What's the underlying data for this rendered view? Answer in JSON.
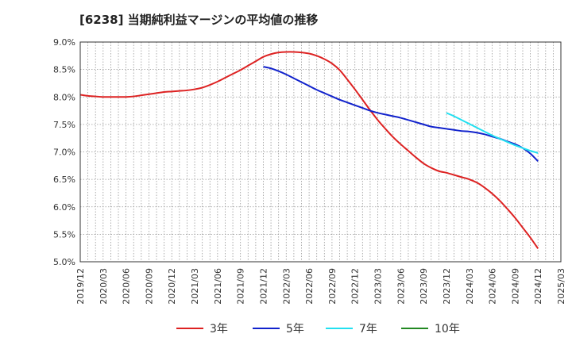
{
  "chart_data": {
    "type": "line",
    "title": "[6238]  当期純利益マージンの平均値の推移",
    "xlabel": "",
    "ylabel": "",
    "ylim": [
      5.0,
      9.0
    ],
    "xlim": [
      "2019/12",
      "2025/03"
    ],
    "y_ticks": [
      "9.0%",
      "8.5%",
      "8.0%",
      "7.5%",
      "7.0%",
      "6.5%",
      "6.0%",
      "5.5%",
      "5.0%"
    ],
    "x_ticks": [
      "2019/12",
      "2020/03",
      "2020/06",
      "2020/09",
      "2020/12",
      "2021/03",
      "2021/06",
      "2021/09",
      "2021/12",
      "2022/03",
      "2022/06",
      "2022/09",
      "2022/12",
      "2023/03",
      "2023/06",
      "2023/09",
      "2023/12",
      "2024/03",
      "2024/06",
      "2024/09",
      "2024/12",
      "2025/03"
    ],
    "grid": true,
    "legend_position": "bottom",
    "series": [
      {
        "name": "3年",
        "color": "#dd2222",
        "x": [
          "2019/12",
          "2020/01",
          "2020/02",
          "2020/03",
          "2020/04",
          "2020/05",
          "2020/06",
          "2020/07",
          "2020/08",
          "2020/09",
          "2020/10",
          "2020/11",
          "2020/12",
          "2021/01",
          "2021/02",
          "2021/03",
          "2021/04",
          "2021/05",
          "2021/06",
          "2021/07",
          "2021/08",
          "2021/09",
          "2021/10",
          "2021/11",
          "2021/12",
          "2022/01",
          "2022/02",
          "2022/03",
          "2022/04",
          "2022/05",
          "2022/06",
          "2022/07",
          "2022/08",
          "2022/09",
          "2022/10",
          "2022/11",
          "2022/12",
          "2023/01",
          "2023/02",
          "2023/03",
          "2023/04",
          "2023/05",
          "2023/06",
          "2023/07",
          "2023/08",
          "2023/09",
          "2023/10",
          "2023/11",
          "2023/12",
          "2024/01",
          "2024/02",
          "2024/03",
          "2024/04",
          "2024/05",
          "2024/06",
          "2024/07",
          "2024/08",
          "2024/09",
          "2024/10",
          "2024/11",
          "2024/12"
        ],
        "values": [
          8.04,
          8.02,
          8.01,
          8.0,
          8.0,
          8.0,
          8.0,
          8.01,
          8.03,
          8.05,
          8.07,
          8.09,
          8.1,
          8.11,
          8.12,
          8.14,
          8.17,
          8.22,
          8.28,
          8.35,
          8.42,
          8.49,
          8.57,
          8.65,
          8.73,
          8.78,
          8.81,
          8.82,
          8.82,
          8.81,
          8.79,
          8.75,
          8.69,
          8.61,
          8.49,
          8.32,
          8.14,
          7.95,
          7.76,
          7.58,
          7.42,
          7.27,
          7.14,
          7.02,
          6.9,
          6.79,
          6.71,
          6.65,
          6.62,
          6.58,
          6.54,
          6.5,
          6.44,
          6.35,
          6.24,
          6.11,
          5.96,
          5.8,
          5.62,
          5.44,
          5.24
        ]
      },
      {
        "name": "5年",
        "color": "#1122cc",
        "x": [
          "2021/12",
          "2022/01",
          "2022/02",
          "2022/03",
          "2022/04",
          "2022/05",
          "2022/06",
          "2022/07",
          "2022/08",
          "2022/09",
          "2022/10",
          "2022/11",
          "2022/12",
          "2023/01",
          "2023/02",
          "2023/03",
          "2023/04",
          "2023/05",
          "2023/06",
          "2023/07",
          "2023/08",
          "2023/09",
          "2023/10",
          "2023/11",
          "2023/12",
          "2024/01",
          "2024/02",
          "2024/03",
          "2024/04",
          "2024/05",
          "2024/06",
          "2024/07",
          "2024/08",
          "2024/09",
          "2024/10",
          "2024/11",
          "2024/12"
        ],
        "values": [
          8.55,
          8.52,
          8.47,
          8.41,
          8.34,
          8.27,
          8.2,
          8.13,
          8.07,
          8.01,
          7.95,
          7.9,
          7.85,
          7.8,
          7.75,
          7.71,
          7.68,
          7.65,
          7.62,
          7.58,
          7.54,
          7.5,
          7.46,
          7.44,
          7.42,
          7.4,
          7.38,
          7.37,
          7.35,
          7.32,
          7.28,
          7.24,
          7.19,
          7.14,
          7.07,
          6.97,
          6.83
        ]
      },
      {
        "name": "7年",
        "color": "#22e0f0",
        "x": [
          "2023/12",
          "2024/01",
          "2024/02",
          "2024/03",
          "2024/04",
          "2024/05",
          "2024/06",
          "2024/07",
          "2024/08",
          "2024/09",
          "2024/10",
          "2024/11",
          "2024/12"
        ],
        "values": [
          7.71,
          7.65,
          7.58,
          7.51,
          7.44,
          7.37,
          7.3,
          7.24,
          7.18,
          7.12,
          7.07,
          7.02,
          6.98
        ]
      },
      {
        "name": "10年",
        "color": "#228822",
        "x": [],
        "values": []
      }
    ]
  }
}
